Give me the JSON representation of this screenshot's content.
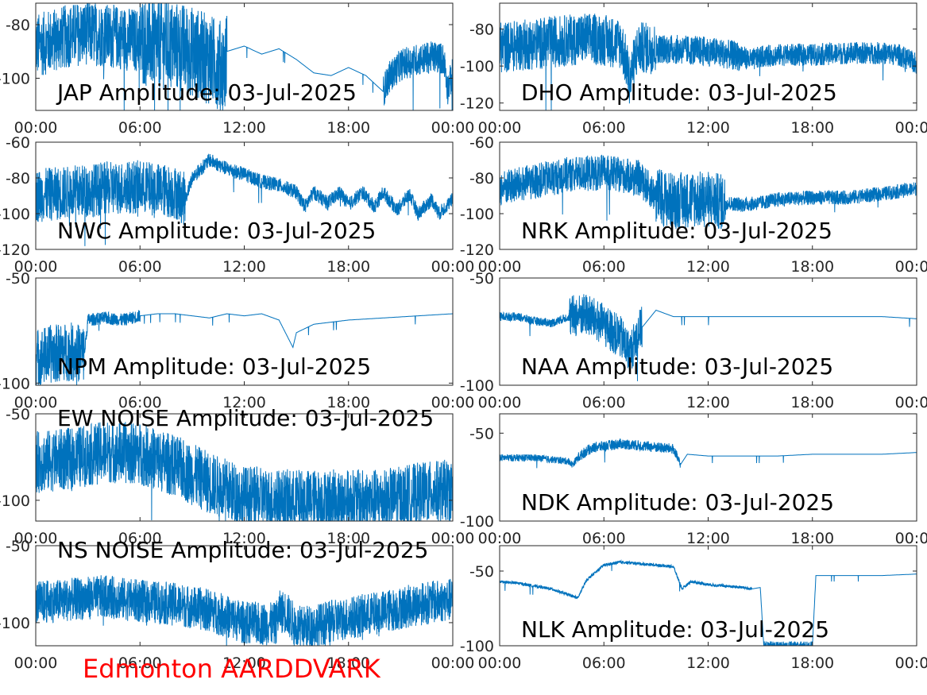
{
  "footer_text": "Edmonton AARDDVARK",
  "colors": {
    "trace": "#0072bd",
    "axis": "#262626",
    "footer": "#ff0000"
  },
  "chart_data": [
    {
      "type": "line",
      "title": "JAP Amplitude: 03-Jul-2025",
      "xticks": [
        "00:00",
        "06:00",
        "12:00",
        "18:00",
        "00:00"
      ],
      "xlim": [
        0,
        24
      ],
      "yticks": [
        {
          "v": -80,
          "label": "-80"
        },
        {
          "v": -100,
          "label": "-100"
        }
      ],
      "ylim": [
        -112,
        -72
      ],
      "x": [
        0,
        1,
        2,
        3,
        4,
        5,
        6,
        7,
        8,
        9,
        10,
        10.9,
        11,
        12,
        13,
        14,
        15,
        16,
        17,
        18,
        19,
        20,
        20.3,
        21,
        22,
        23,
        23.5,
        23.7,
        24
      ],
      "y": [
        -88,
        -86,
        -84,
        -83,
        -84,
        -85,
        -86,
        -87,
        -88,
        -90,
        -93,
        -96,
        -90,
        -88,
        -91,
        -89,
        -93,
        -98,
        -99,
        -96,
        -99,
        -105,
        -100,
        -95,
        -93,
        -92,
        -93,
        -104,
        -98
      ],
      "noise": [
        [
          0,
          6,
          12
        ],
        [
          6,
          11,
          17
        ],
        [
          20,
          24,
          6
        ]
      ]
    },
    {
      "type": "line",
      "title": "DHO Amplitude: 03-Jul-2025",
      "xticks": [
        "00:00",
        "06:00",
        "12:00",
        "18:00",
        "00:00"
      ],
      "xlim": [
        0,
        24
      ],
      "yticks": [
        {
          "v": -80,
          "label": "-80"
        },
        {
          "v": -100,
          "label": "-100"
        },
        {
          "v": -120,
          "label": "-120"
        }
      ],
      "ylim": [
        -124,
        -66
      ],
      "x": [
        0,
        2,
        4,
        5,
        6,
        7,
        7.2,
        7.5,
        7.8,
        8,
        10,
        12,
        14,
        14.5,
        15,
        16,
        18,
        20,
        22,
        23,
        24
      ],
      "y": [
        -90,
        -88,
        -86,
        -85,
        -86,
        -88,
        -95,
        -108,
        -95,
        -90,
        -91,
        -92,
        -95,
        -97,
        -95,
        -94,
        -94,
        -93,
        -93,
        -94,
        -99
      ],
      "noise": [
        [
          0,
          9,
          14
        ],
        [
          9,
          14,
          8
        ],
        [
          14,
          24,
          6
        ]
      ]
    },
    {
      "type": "line",
      "title": "NWC Amplitude: 03-Jul-2025",
      "xticks": [
        "00:00",
        "06:00",
        "12:00",
        "18:00",
        "00:00"
      ],
      "xlim": [
        0,
        24
      ],
      "yticks": [
        {
          "v": -60,
          "label": "-60"
        },
        {
          "v": -80,
          "label": "-80"
        },
        {
          "v": -100,
          "label": "-100"
        },
        {
          "v": -120,
          "label": "-120"
        }
      ],
      "ylim": [
        -120,
        -60
      ],
      "x": [
        0,
        2,
        4,
        6,
        8,
        8.6,
        9,
        10,
        11,
        12,
        13,
        14,
        15,
        15.5,
        16,
        16.8,
        17.5,
        18,
        18.8,
        19.5,
        20,
        20.8,
        21.5,
        22,
        22.8,
        23.2,
        24
      ],
      "y": [
        -90,
        -88,
        -86,
        -85,
        -88,
        -92,
        -80,
        -70,
        -75,
        -78,
        -82,
        -84,
        -88,
        -96,
        -88,
        -94,
        -88,
        -95,
        -88,
        -96,
        -88,
        -98,
        -89,
        -100,
        -92,
        -100,
        -92
      ],
      "noise": [
        [
          0,
          8.6,
          15
        ],
        [
          8.6,
          24,
          4
        ]
      ]
    },
    {
      "type": "line",
      "title": "NRK Amplitude: 03-Jul-2025",
      "xticks": [
        "00:00",
        "06:00",
        "12:00",
        "18:00",
        "00:00"
      ],
      "xlim": [
        0,
        24
      ],
      "yticks": [
        {
          "v": -60,
          "label": "-60"
        },
        {
          "v": -80,
          "label": "-80"
        },
        {
          "v": -100,
          "label": "-100"
        },
        {
          "v": -120,
          "label": "-120"
        }
      ],
      "ylim": [
        -120,
        -60
      ],
      "x": [
        0,
        2,
        4,
        6,
        8,
        9,
        10,
        11,
        12,
        13,
        14,
        15,
        16,
        18,
        20,
        22,
        24
      ],
      "y": [
        -86,
        -82,
        -78,
        -77,
        -80,
        -90,
        -93,
        -92,
        -92,
        -94,
        -95,
        -94,
        -92,
        -91,
        -91,
        -89,
        -86
      ],
      "noise": [
        [
          0,
          9,
          10
        ],
        [
          9,
          13,
          16
        ],
        [
          13,
          24,
          4
        ]
      ]
    },
    {
      "type": "line",
      "title": "NPM Amplitude: 03-Jul-2025",
      "xticks": [
        "00:00",
        "06:00",
        "12:00",
        "18:00",
        "00:00"
      ],
      "xlim": [
        0,
        24
      ],
      "yticks": [
        {
          "v": -50,
          "label": "-50"
        },
        {
          "v": -100,
          "label": "-100"
        }
      ],
      "ylim": [
        -101,
        -50
      ],
      "x": [
        0,
        1,
        2,
        2.8,
        3,
        4,
        5,
        6,
        7,
        8,
        9,
        10,
        11,
        12,
        13,
        14,
        14.8,
        15,
        16,
        17,
        18,
        20,
        22,
        24
      ],
      "y": [
        -88,
        -86,
        -85,
        -86,
        -70,
        -69,
        -70,
        -68,
        -67,
        -67,
        -68,
        -69,
        -67,
        -68,
        -67,
        -70,
        -83,
        -76,
        -72,
        -71,
        -70,
        -69,
        -68,
        -67
      ],
      "noise": [
        [
          0,
          2.8,
          14
        ],
        [
          2.8,
          6,
          3
        ]
      ]
    },
    {
      "type": "line",
      "title": "NAA Amplitude: 03-Jul-2025",
      "xticks": [
        "00:00",
        "06:00",
        "12:00",
        "18:00",
        "00:00"
      ],
      "xlim": [
        0,
        24
      ],
      "yticks": [
        {
          "v": -50,
          "label": "-50"
        },
        {
          "v": -100,
          "label": "-100"
        }
      ],
      "ylim": [
        -100,
        -50
      ],
      "x": [
        0,
        1,
        2,
        3,
        4,
        5,
        6,
        7,
        7.5,
        8,
        9,
        10,
        12,
        14,
        16,
        18,
        20,
        22,
        24
      ],
      "y": [
        -68,
        -68,
        -70,
        -71,
        -68,
        -67,
        -72,
        -78,
        -85,
        -75,
        -65,
        -68,
        -68,
        -68,
        -68,
        -68,
        -68,
        -68,
        -69
      ],
      "noise": [
        [
          0,
          4,
          2
        ],
        [
          4,
          8.2,
          10
        ]
      ]
    },
    {
      "type": "line",
      "title": "EW NOISE Amplitude: 03-Jul-2025",
      "xticks": [
        "00:00",
        "06:00",
        "12:00",
        "18:00",
        "00:00"
      ],
      "xlim": [
        0,
        24
      ],
      "yticks": [
        {
          "v": -50,
          "label": "-50"
        },
        {
          "v": -100,
          "label": "-100"
        }
      ],
      "ylim": [
        -112,
        -50
      ],
      "x": [
        0,
        2,
        4,
        6,
        8,
        10,
        12,
        14,
        16,
        18,
        20,
        22,
        24
      ],
      "y": [
        -78,
        -76,
        -72,
        -73,
        -80,
        -90,
        -98,
        -100,
        -100,
        -100,
        -100,
        -96,
        -94
      ],
      "noise": [
        [
          0,
          24,
          18
        ]
      ]
    },
    {
      "type": "line",
      "title": "NDK Amplitude: 03-Jul-2025",
      "xticks": [
        "00:00",
        "06:00",
        "12:00",
        "18:00",
        "00:00"
      ],
      "xlim": [
        0,
        24
      ],
      "yticks": [
        {
          "v": -50,
          "label": "-50"
        },
        {
          "v": -100,
          "label": "-100"
        }
      ],
      "ylim": [
        -100,
        -39
      ],
      "x": [
        0,
        2,
        3,
        4,
        4.2,
        4.5,
        5,
        5.5,
        7,
        8,
        9,
        10,
        10.4,
        10.8,
        12,
        14,
        16,
        18,
        20,
        22,
        24
      ],
      "y": [
        -64,
        -64,
        -65,
        -66,
        -68,
        -64,
        -60,
        -58,
        -56,
        -57,
        -58,
        -59,
        -68,
        -62,
        -63,
        -63,
        -63,
        -62,
        -62,
        -62,
        -61
      ],
      "noise": [
        [
          0,
          4.5,
          2
        ],
        [
          4.5,
          10.4,
          3
        ]
      ]
    },
    {
      "type": "line",
      "title": "NS NOISE Amplitude: 03-Jul-2025",
      "xticks": [
        "00:00",
        "06:00",
        "12:00",
        "18:00",
        "00:00"
      ],
      "xlim": [
        0,
        24
      ],
      "yticks": [
        {
          "v": -50,
          "label": "-50"
        },
        {
          "v": -100,
          "label": "-100"
        }
      ],
      "ylim": [
        -115,
        -50
      ],
      "x": [
        0,
        2,
        4,
        6,
        8,
        10,
        12,
        13.8,
        14,
        14.4,
        15,
        16,
        18,
        20,
        22,
        24
      ],
      "y": [
        -87,
        -85,
        -83,
        -86,
        -88,
        -92,
        -100,
        -101,
        -93,
        -93,
        -103,
        -102,
        -97,
        -93,
        -88,
        -85
      ],
      "noise": [
        [
          0,
          24,
          14
        ]
      ]
    },
    {
      "type": "line",
      "title": "NLK Amplitude: 03-Jul-2025",
      "xticks": [
        "00:00",
        "06:00",
        "12:00",
        "18:00",
        "00:00"
      ],
      "xlim": [
        0,
        24
      ],
      "yticks": [
        {
          "v": -50,
          "label": "-50"
        },
        {
          "v": -100,
          "label": "-100"
        }
      ],
      "ylim": [
        -100,
        -33
      ],
      "x": [
        0,
        1,
        2,
        3,
        4,
        4.5,
        5,
        6,
        7,
        8,
        9,
        10,
        10.5,
        11,
        12,
        13,
        14,
        14.5,
        15,
        15.2,
        15.6,
        18,
        18.2,
        20,
        22,
        24
      ],
      "y": [
        -57,
        -58,
        -60,
        -62,
        -66,
        -68,
        -56,
        -46,
        -44,
        -45,
        -46,
        -47,
        -62,
        -57,
        -59,
        -60,
        -61,
        -62,
        -61,
        -100,
        -100,
        -100,
        -53,
        -53,
        -53,
        -52
      ],
      "noise": [
        [
          0,
          14.5,
          1
        ],
        [
          15.2,
          18,
          3
        ]
      ]
    }
  ]
}
